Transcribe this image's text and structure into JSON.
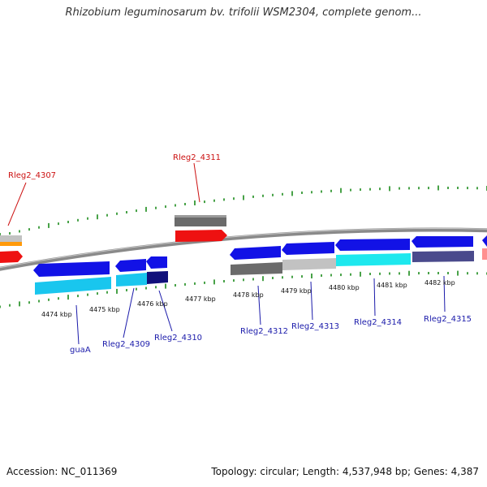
{
  "title": "Rhizobium leguminosarum bv. trifolii WSM2304, complete genom...",
  "footer": {
    "accession": "Accession: NC_011369",
    "topology": "Topology: circular; Length: 4,537,948 bp; Genes: 4,387"
  },
  "colors": {
    "backbone": "#8a8a8a",
    "tick_green": "#1a8a1a",
    "forward_label": "#cc1111",
    "reverse_label": "#1a1aaa",
    "blue_arrow": "#1212e6",
    "cyan": "#19c6ee",
    "bright_cyan": "#1ee8ee",
    "navy": "#10107a",
    "gray": "#6b6b6b",
    "light_gray": "#c2c2c2",
    "slate": "#4a4a8c",
    "red": "#ee1111",
    "orange": "#ff9a0a",
    "pink": "#ff8f8f"
  },
  "kbp_labels": [
    "4474 kbp",
    "4475 kbp",
    "4476 kbp",
    "4477 kbp",
    "4478 kbp",
    "4479 kbp",
    "4480 kbp",
    "4481 kbp",
    "4482 kbp"
  ],
  "gene_labels": [
    {
      "text": "Rleg2_4307",
      "strand": "forward"
    },
    {
      "text": "Rleg2_4311",
      "strand": "forward"
    },
    {
      "text": "guaA",
      "strand": "reverse"
    },
    {
      "text": "Rleg2_4309",
      "strand": "reverse"
    },
    {
      "text": "Rleg2_4310",
      "strand": "reverse"
    },
    {
      "text": "Rleg2_4312",
      "strand": "reverse"
    },
    {
      "text": "Rleg2_4313",
      "strand": "reverse"
    },
    {
      "text": "Rleg2_4314",
      "strand": "reverse"
    },
    {
      "text": "Rleg2_4315",
      "strand": "reverse"
    }
  ]
}
